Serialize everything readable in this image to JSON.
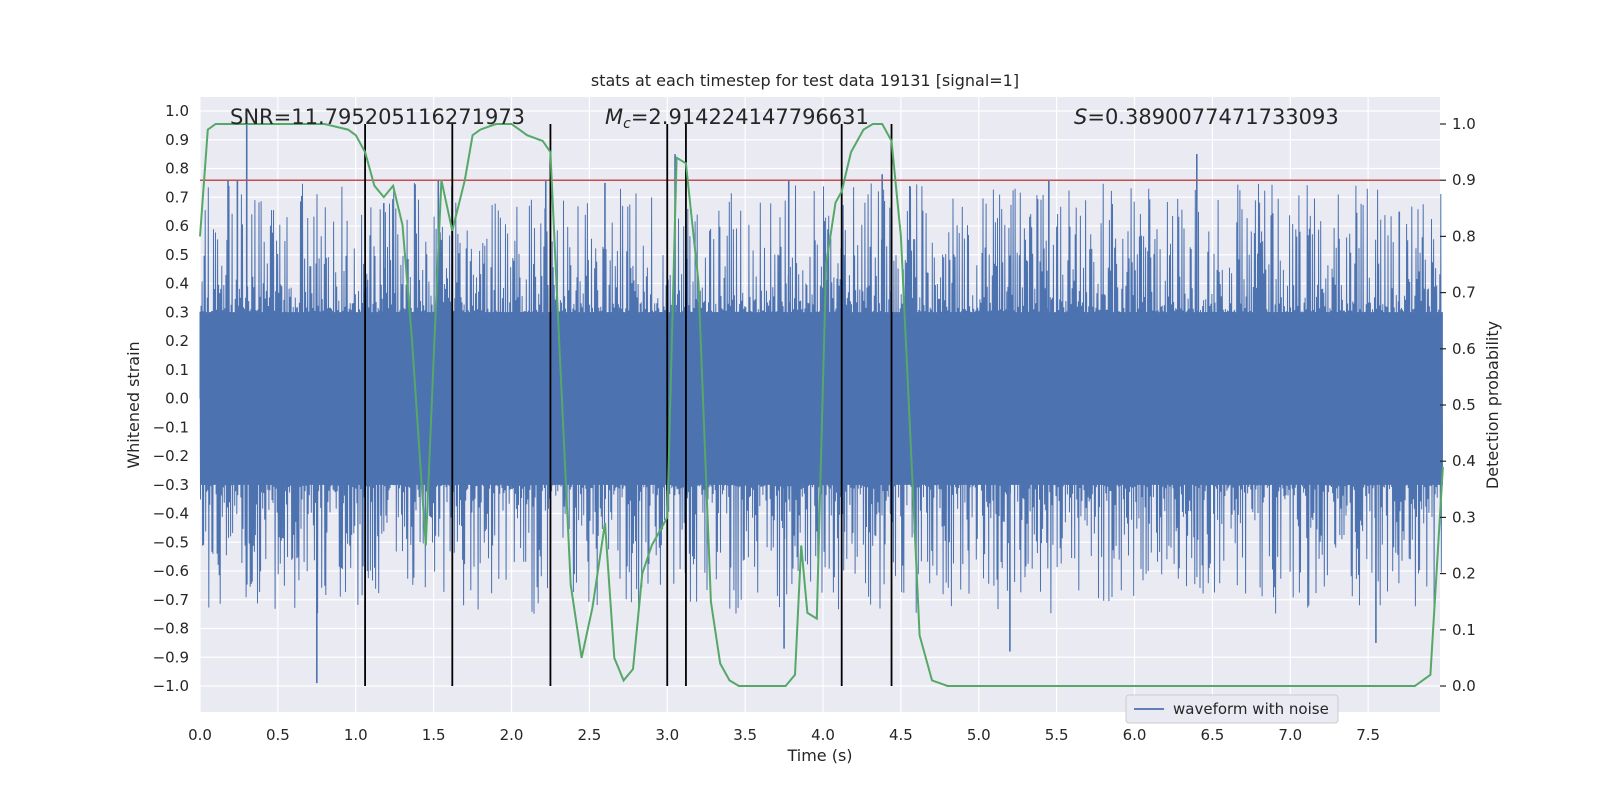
{
  "chart_data": {
    "type": "line",
    "title": "stats at each timestep for test data 19131 [signal=1]",
    "xlabel": "Time (s)",
    "ylabel": "Whitened strain",
    "y2label": "Detection probability",
    "xlim": [
      0.0,
      8.0
    ],
    "ylim": [
      -1.1,
      1.05
    ],
    "y2lim": [
      -0.05,
      1.05
    ],
    "xticks": [
      0.0,
      0.5,
      1.0,
      1.5,
      2.0,
      2.5,
      3.0,
      3.5,
      4.0,
      4.5,
      5.0,
      5.5,
      6.0,
      6.5,
      7.0,
      7.5
    ],
    "xtick_labels": [
      "0.0",
      "0.5",
      "1.0",
      "1.5",
      "2.0",
      "2.5",
      "3.0",
      "3.5",
      "4.0",
      "4.5",
      "5.0",
      "5.5",
      "6.0",
      "6.5",
      "7.0",
      "7.5"
    ],
    "yticks": [
      1.0,
      0.9,
      0.8,
      0.7,
      0.6,
      0.5,
      0.4,
      0.3,
      0.2,
      0.1,
      0.0,
      -0.1,
      -0.2,
      -0.3,
      -0.4,
      -0.5,
      -0.6,
      -0.7,
      -0.8,
      -0.9,
      -1.0
    ],
    "ytick_labels": [
      "1.0",
      "0.9",
      "0.8",
      "0.7",
      "0.6",
      "0.5",
      "0.4",
      "0.3",
      "0.2",
      "0.1",
      "0.0",
      "−0.1",
      "−0.2",
      "−0.3",
      "−0.4",
      "−0.5",
      "−0.6",
      "−0.7",
      "−0.8",
      "−0.9",
      "−1.0"
    ],
    "y2ticks": [
      1.0,
      0.9,
      0.8,
      0.7,
      0.6,
      0.5,
      0.4,
      0.3,
      0.2,
      0.1,
      0.0
    ],
    "y2tick_labels": [
      "1.0",
      "0.9",
      "0.8",
      "0.7",
      "0.6",
      "0.5",
      "0.4",
      "0.3",
      "0.2",
      "0.1",
      "0.0"
    ],
    "grid": true,
    "legend": {
      "position": "lower-right",
      "entries": [
        "waveform with noise"
      ]
    },
    "annotations": {
      "snr": "SNR=11.795205116271973",
      "mc_symbol": "M",
      "mc_sub": "c",
      "mc_value": "=2.914224147796631",
      "s_symbol": "S",
      "s_value": "=0.3890077471733093"
    },
    "threshold": {
      "y2": 0.9,
      "color": "#c44e52"
    },
    "event_lines_x": [
      1.06,
      1.62,
      2.25,
      3.0,
      3.12,
      4.12,
      4.44
    ],
    "waveform": {
      "name": "waveform with noise",
      "color": "#4c72b0",
      "envelope_core": 0.3,
      "peak_spikes": [
        {
          "x": 0.3,
          "y": 0.98
        },
        {
          "x": 0.18,
          "y": 0.76
        },
        {
          "x": 0.24,
          "y": 0.76
        },
        {
          "x": 0.75,
          "y": -0.99
        },
        {
          "x": 1.18,
          "y": 0.68
        },
        {
          "x": 1.53,
          "y": 0.76
        },
        {
          "x": 2.22,
          "y": 0.76
        },
        {
          "x": 2.6,
          "y": 0.75
        },
        {
          "x": 3.05,
          "y": 0.85
        },
        {
          "x": 3.75,
          "y": -0.87
        },
        {
          "x": 3.78,
          "y": 0.76
        },
        {
          "x": 4.38,
          "y": 0.78
        },
        {
          "x": 5.45,
          "y": 0.76
        },
        {
          "x": 6.4,
          "y": 0.85
        },
        {
          "x": 7.55,
          "y": -0.85
        },
        {
          "x": 7.7,
          "y": 0.65
        },
        {
          "x": 5.2,
          "y": -0.88
        }
      ]
    },
    "probability": {
      "name": "detection probability",
      "color": "#55a868",
      "x": [
        0.0,
        0.05,
        0.1,
        0.2,
        0.4,
        0.6,
        0.8,
        0.95,
        1.0,
        1.06,
        1.12,
        1.18,
        1.24,
        1.3,
        1.36,
        1.45,
        1.5,
        1.55,
        1.62,
        1.7,
        1.75,
        1.8,
        1.9,
        2.0,
        2.05,
        2.1,
        2.2,
        2.25,
        2.3,
        2.38,
        2.45,
        2.52,
        2.6,
        2.66,
        2.72,
        2.78,
        2.84,
        2.9,
        2.96,
        3.0,
        3.06,
        3.12,
        3.2,
        3.28,
        3.34,
        3.4,
        3.46,
        3.5,
        3.6,
        3.7,
        3.76,
        3.82,
        3.86,
        3.9,
        3.96,
        4.02,
        4.08,
        4.12,
        4.18,
        4.26,
        4.32,
        4.38,
        4.44,
        4.5,
        4.56,
        4.62,
        4.7,
        4.8,
        5.0,
        5.2,
        5.3,
        5.4,
        5.6,
        6.0,
        6.2,
        6.5,
        7.0,
        7.5,
        7.7,
        7.8,
        7.9,
        7.98
      ],
      "y": [
        0.8,
        0.99,
        1.0,
        1.0,
        1.0,
        1.0,
        1.0,
        0.99,
        0.98,
        0.95,
        0.89,
        0.87,
        0.89,
        0.82,
        0.62,
        0.25,
        0.58,
        0.9,
        0.81,
        0.9,
        0.98,
        0.99,
        1.0,
        1.0,
        0.99,
        0.98,
        0.97,
        0.95,
        0.65,
        0.18,
        0.05,
        0.14,
        0.29,
        0.05,
        0.01,
        0.03,
        0.2,
        0.25,
        0.28,
        0.3,
        0.94,
        0.93,
        0.72,
        0.15,
        0.04,
        0.01,
        0.0,
        0.0,
        0.0,
        0.0,
        0.0,
        0.02,
        0.25,
        0.13,
        0.12,
        0.75,
        0.86,
        0.88,
        0.95,
        0.99,
        1.0,
        1.0,
        0.97,
        0.8,
        0.45,
        0.09,
        0.01,
        0.0,
        0.0,
        0.0,
        0.0,
        0.0,
        0.0,
        0.0,
        0.0,
        0.0,
        0.0,
        0.0,
        0.0,
        0.0,
        0.02,
        0.39
      ]
    }
  }
}
